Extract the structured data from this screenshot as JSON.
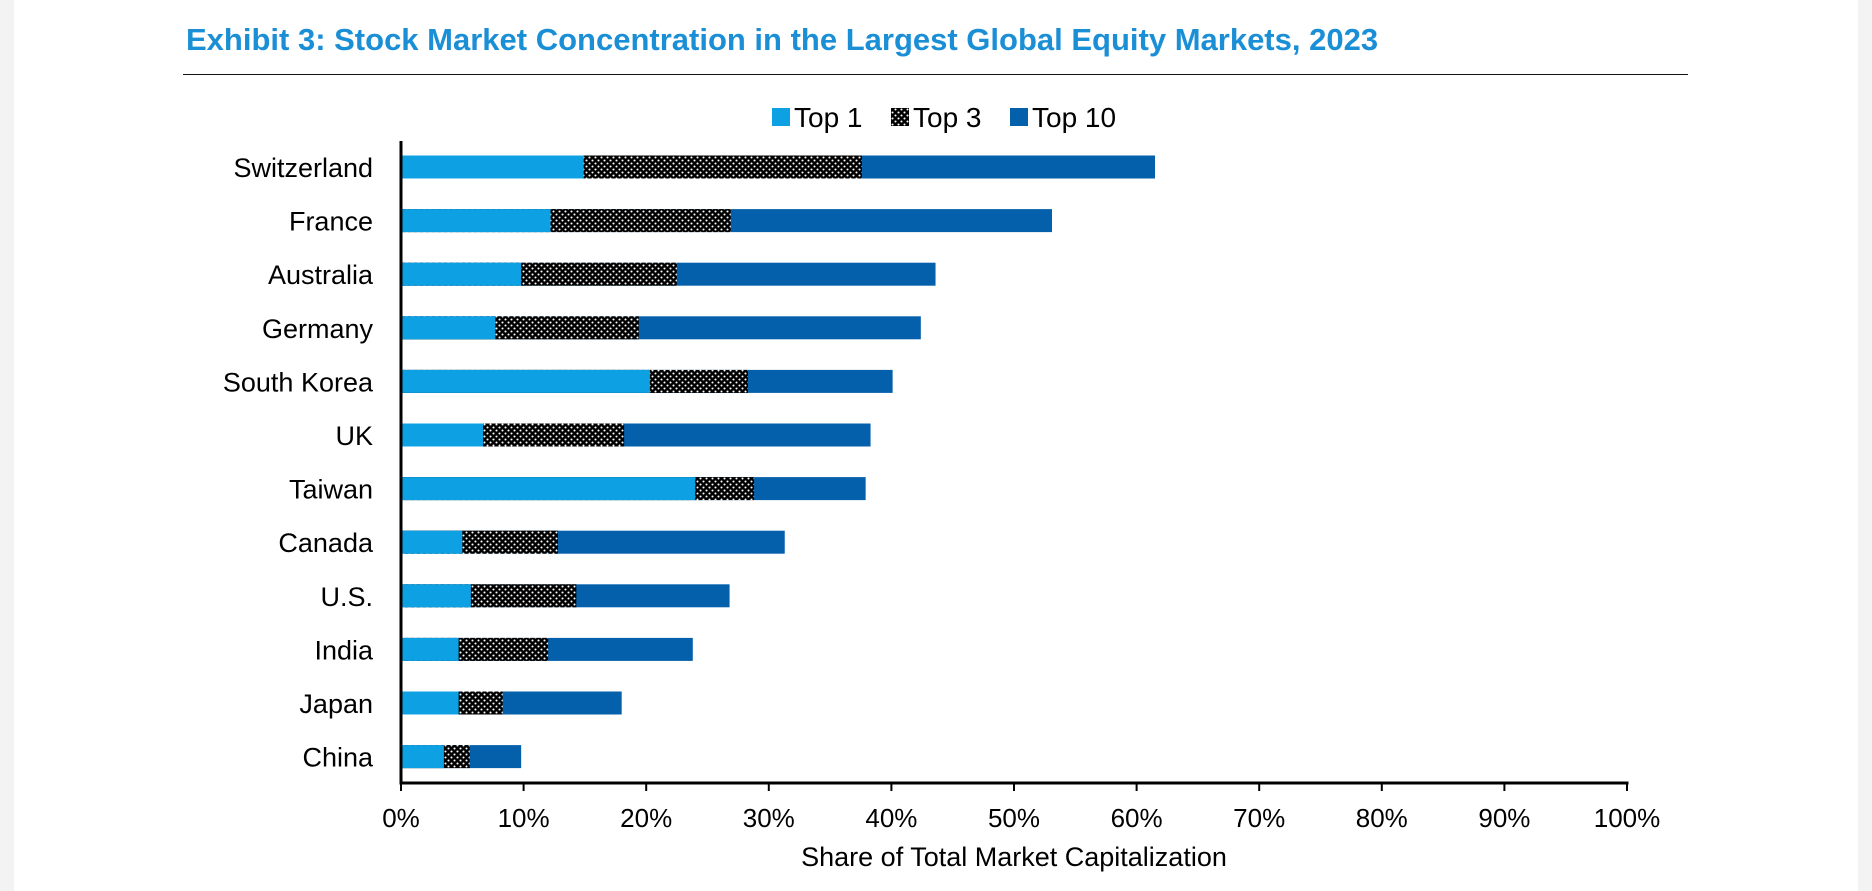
{
  "title": "Exhibit 3: Stock Market Concentration in the Largest Global Equity Markets, 2023",
  "chart_data": {
    "type": "bar",
    "orientation": "horizontal",
    "stacked": true,
    "categories": [
      "Switzerland",
      "France",
      "Australia",
      "Germany",
      "South Korea",
      "UK",
      "Taiwan",
      "Canada",
      "U.S.",
      "India",
      "Japan",
      "China"
    ],
    "cumulative_values": {
      "Top 1": [
        14.9,
        12.2,
        9.8,
        7.7,
        20.3,
        6.7,
        24.0,
        5.0,
        5.7,
        4.7,
        4.7,
        3.5
      ],
      "Top 3": [
        37.6,
        26.9,
        22.5,
        19.4,
        28.3,
        18.2,
        28.8,
        12.8,
        14.3,
        12.0,
        8.3,
        5.6
      ],
      "Top 10": [
        61.5,
        53.1,
        43.6,
        42.4,
        40.1,
        38.3,
        37.9,
        31.3,
        26.8,
        23.8,
        18.0,
        9.8
      ]
    },
    "series": [
      {
        "name": "Top 1",
        "color": "#0da1e3",
        "pattern": "solid"
      },
      {
        "name": "Top 3",
        "color": "#000000",
        "pattern": "white-dots"
      },
      {
        "name": "Top 10",
        "color": "#0560ab",
        "pattern": "solid"
      }
    ],
    "xlabel": "Share of Total Market Capitalization",
    "ylabel": "",
    "xlim": [
      0,
      100
    ],
    "xticks": [
      0,
      10,
      20,
      30,
      40,
      50,
      60,
      70,
      80,
      90,
      100
    ],
    "xtick_labels": [
      "0%",
      "10%",
      "20%",
      "30%",
      "40%",
      "50%",
      "60%",
      "70%",
      "80%",
      "90%",
      "100%"
    ],
    "grid": false,
    "legend_position": "top-center"
  }
}
